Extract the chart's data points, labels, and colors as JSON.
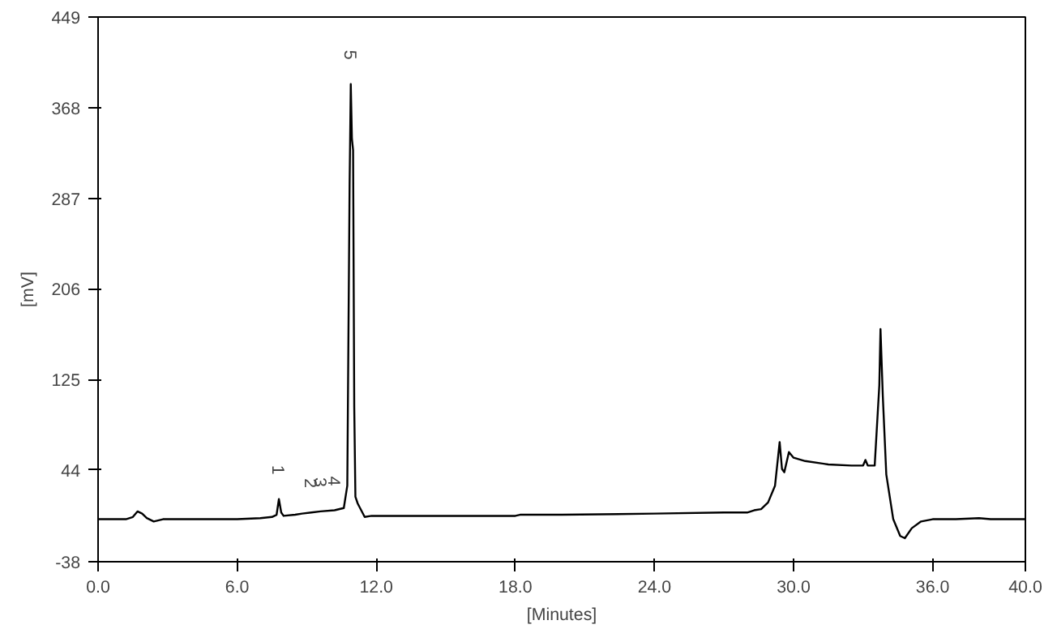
{
  "chart_data": {
    "type": "line",
    "xlabel": "[Minutes]",
    "ylabel": "[mV]",
    "x": [
      0,
      1.2,
      1.5,
      1.7,
      1.9,
      2.1,
      2.4,
      2.8,
      4,
      6,
      7,
      7.5,
      7.7,
      7.8,
      7.9,
      8.0,
      8.5,
      8.8,
      9.2,
      9.6,
      10.2,
      10.6,
      10.75,
      10.85,
      10.9,
      10.95,
      11.0,
      11.05,
      11.1,
      11.2,
      11.3,
      11.5,
      11.8,
      14,
      18,
      18.2,
      20,
      24,
      27,
      28,
      28.3,
      28.6,
      28.9,
      29.2,
      29.4,
      29.5,
      29.6,
      29.8,
      30,
      30.5,
      31.5,
      32.5,
      33.0,
      33.1,
      33.2,
      33.5,
      33.7,
      33.75,
      33.85,
      34.0,
      34.3,
      34.6,
      34.8,
      35.1,
      35.5,
      36,
      37,
      38,
      38.5,
      40
    ],
    "series": [
      {
        "color": "#000000",
        "values": [
          0,
          0,
          2,
          7,
          5,
          1,
          -2,
          0,
          0,
          0,
          1,
          2,
          4,
          18,
          6,
          3,
          4,
          5,
          6,
          7,
          8,
          10,
          30,
          300,
          389,
          340,
          330,
          100,
          20,
          14,
          10,
          2,
          3,
          3,
          3,
          4,
          4,
          5,
          6,
          6,
          8,
          9,
          15,
          30,
          69,
          45,
          42,
          60,
          55,
          52,
          49,
          48,
          48,
          53,
          48,
          48,
          120,
          170,
          110,
          40,
          0,
          -15,
          -17,
          -8,
          -2,
          0,
          0,
          1,
          0,
          0
        ]
      }
    ],
    "xlim": [
      0,
      40
    ],
    "ylim": [
      -38,
      449
    ],
    "xticks": [
      {
        "value": 0,
        "label": "0.0"
      },
      {
        "value": 6,
        "label": "6.0"
      },
      {
        "value": 12,
        "label": "12.0"
      },
      {
        "value": 18,
        "label": "18.0"
      },
      {
        "value": 24,
        "label": "24.0"
      },
      {
        "value": 30,
        "label": "30.0"
      },
      {
        "value": 36,
        "label": "36.0"
      },
      {
        "value": 40,
        "label": "40.0"
      }
    ],
    "yticks": [
      -38,
      44,
      125,
      206,
      287,
      368,
      449
    ],
    "annotations": [
      {
        "text": "1",
        "x": 7.8,
        "y": 18
      },
      {
        "text": "2",
        "x": 9.2,
        "y": 6
      },
      {
        "text": "3",
        "x": 9.6,
        "y": 7
      },
      {
        "text": "4",
        "x": 10.2,
        "y": 8
      },
      {
        "text": "5",
        "x": 10.9,
        "y": 389
      }
    ]
  }
}
